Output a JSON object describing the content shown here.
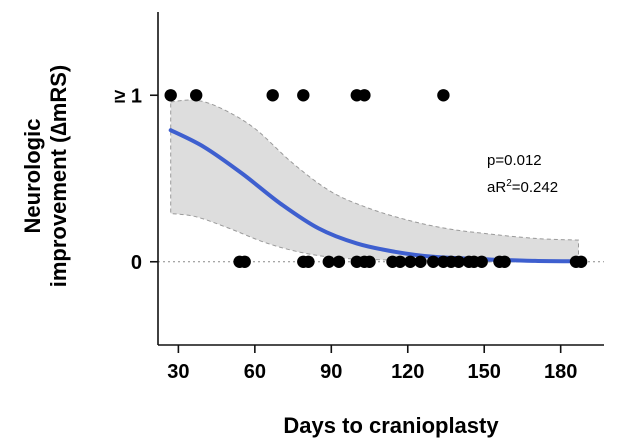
{
  "chart_data": {
    "type": "scatter",
    "xlabel": "Days to cranioplasty",
    "ylabel_line1": "Neurologic",
    "ylabel_line2": "improvement (∆mRS)",
    "x_ticks": [
      30,
      60,
      90,
      120,
      150,
      180
    ],
    "y_ticks": [
      {
        "value": 0,
        "label": "0"
      },
      {
        "value": 1,
        "label": "≥ 1"
      }
    ],
    "xlim": [
      22,
      197
    ],
    "ylim": [
      -0.5,
      1.5
    ],
    "annotation": {
      "p": "p=0.012",
      "r2_prefix": "aR",
      "r2_sup": "2",
      "r2_suffix": "=0.242"
    },
    "colors": {
      "fit": "#3e5fcf",
      "points": "#000000",
      "band": "#dddddd"
    },
    "points": [
      {
        "x": 27,
        "y": 1
      },
      {
        "x": 37,
        "y": 1
      },
      {
        "x": 67,
        "y": 1
      },
      {
        "x": 79,
        "y": 1
      },
      {
        "x": 100,
        "y": 1
      },
      {
        "x": 103,
        "y": 1
      },
      {
        "x": 134,
        "y": 1
      },
      {
        "x": 54,
        "y": 0
      },
      {
        "x": 56,
        "y": 0
      },
      {
        "x": 79,
        "y": 0
      },
      {
        "x": 81,
        "y": 0
      },
      {
        "x": 89,
        "y": 0
      },
      {
        "x": 93,
        "y": 0
      },
      {
        "x": 100,
        "y": 0
      },
      {
        "x": 103,
        "y": 0
      },
      {
        "x": 105,
        "y": 0
      },
      {
        "x": 114,
        "y": 0
      },
      {
        "x": 117,
        "y": 0
      },
      {
        "x": 121,
        "y": 0
      },
      {
        "x": 125,
        "y": 0
      },
      {
        "x": 130,
        "y": 0
      },
      {
        "x": 134,
        "y": 0
      },
      {
        "x": 137,
        "y": 0
      },
      {
        "x": 140,
        "y": 0
      },
      {
        "x": 144,
        "y": 0
      },
      {
        "x": 146,
        "y": 0
      },
      {
        "x": 149,
        "y": 0
      },
      {
        "x": 156,
        "y": 0
      },
      {
        "x": 158,
        "y": 0
      },
      {
        "x": 186,
        "y": 0
      },
      {
        "x": 188,
        "y": 0
      }
    ],
    "fit_curve": [
      {
        "x": 27,
        "y": 0.79
      },
      {
        "x": 40,
        "y": 0.69
      },
      {
        "x": 55,
        "y": 0.53
      },
      {
        "x": 70,
        "y": 0.35
      },
      {
        "x": 85,
        "y": 0.2
      },
      {
        "x": 100,
        "y": 0.11
      },
      {
        "x": 115,
        "y": 0.06
      },
      {
        "x": 130,
        "y": 0.03
      },
      {
        "x": 150,
        "y": 0.015
      },
      {
        "x": 170,
        "y": 0.005
      },
      {
        "x": 187,
        "y": 0.003
      }
    ],
    "ci_upper": [
      {
        "x": 27,
        "y": 0.96
      },
      {
        "x": 37,
        "y": 0.97
      },
      {
        "x": 47,
        "y": 0.92
      },
      {
        "x": 60,
        "y": 0.8
      },
      {
        "x": 75,
        "y": 0.59
      },
      {
        "x": 90,
        "y": 0.42
      },
      {
        "x": 105,
        "y": 0.32
      },
      {
        "x": 120,
        "y": 0.25
      },
      {
        "x": 135,
        "y": 0.2
      },
      {
        "x": 150,
        "y": 0.17
      },
      {
        "x": 170,
        "y": 0.14
      },
      {
        "x": 187,
        "y": 0.13
      }
    ],
    "ci_lower": [
      {
        "x": 27,
        "y": 0.29
      },
      {
        "x": 37,
        "y": 0.27
      },
      {
        "x": 50,
        "y": 0.2
      },
      {
        "x": 65,
        "y": 0.11
      },
      {
        "x": 80,
        "y": 0.05
      },
      {
        "x": 95,
        "y": 0.02
      },
      {
        "x": 115,
        "y": 0.01
      },
      {
        "x": 150,
        "y": 0.0
      },
      {
        "x": 187,
        "y": 0.0
      }
    ]
  }
}
